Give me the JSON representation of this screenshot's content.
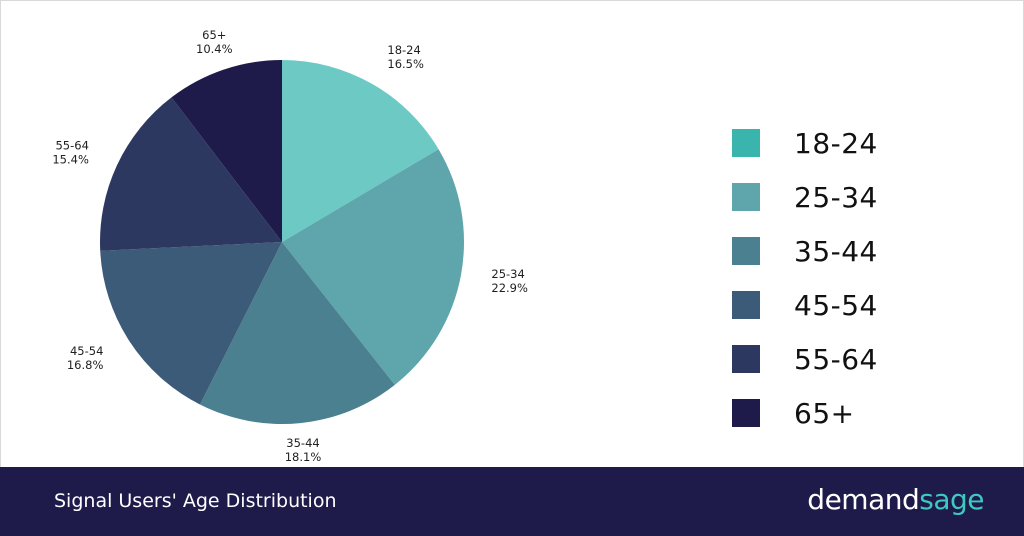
{
  "chart_data": {
    "type": "pie",
    "categories": [
      "18-24",
      "25-34",
      "35-44",
      "45-54",
      "55-64",
      "65+"
    ],
    "values": [
      16.5,
      22.9,
      18.1,
      16.8,
      15.4,
      10.4
    ],
    "value_labels": [
      "16.5%",
      "22.9%",
      "18.1%",
      "16.8%",
      "15.4%",
      "10.4%"
    ],
    "slice_colors": [
      "#6cc9c4",
      "#5ea6ab",
      "#4a808f",
      "#3b5b78",
      "#2c3860",
      "#1e1b4b"
    ],
    "legend_colors": [
      "#3ab5ad",
      "#5ea6ab",
      "#4a808f",
      "#3b5b78",
      "#2c3860",
      "#1e1b4b"
    ],
    "legend_placement": "right",
    "start": "top, clockwise"
  },
  "footer": {
    "title": "Signal Users' Age Distribution",
    "brand_part1": "demand",
    "brand_part2": "sage",
    "brand_accent": "#3ec9c0",
    "background": "#1e1b4b"
  }
}
